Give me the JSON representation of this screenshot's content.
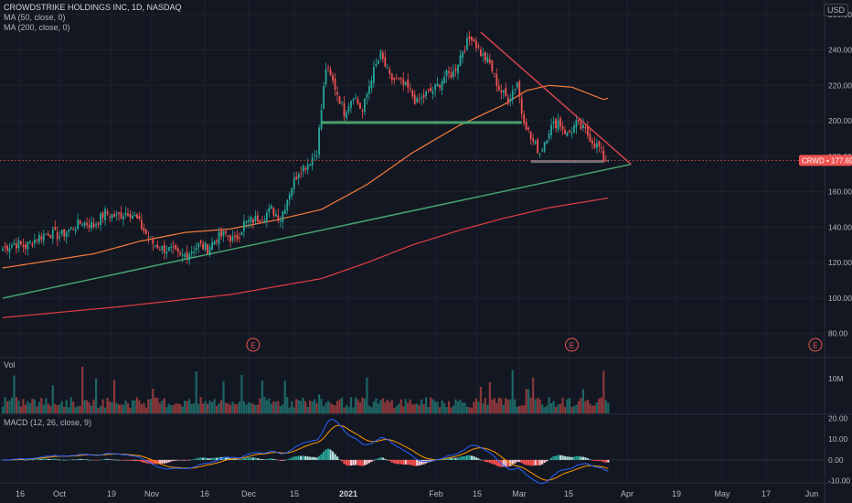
{
  "header": {
    "title": "CROWDSTRIKE HOLDINGS INC, 1D, NASDAQ",
    "ma50_label": "MA (50, close, 0)",
    "ma200_label": "MA (200, close, 0)",
    "currency": "USD"
  },
  "price_tag": {
    "symbol": "CRWD",
    "value": "177.69"
  },
  "vol_panel": {
    "label": "Vol",
    "tick": "10M"
  },
  "macd_panel": {
    "label": "MACD (12, 26, close, 9)"
  },
  "earnings_marker": "E",
  "colors": {
    "background": "#131722",
    "up": "#26a69a",
    "down": "#ef5350",
    "ma50": "#f57c3c",
    "ma200": "#e23e44",
    "support_line": "#4caf78",
    "resistance_line": "#e84752",
    "macd_line": "#2962ff",
    "signal_line": "#ff9800",
    "grid": "#1e222d"
  },
  "chart_data": {
    "type": "candlestick",
    "title": "CROWDSTRIKE HOLDINGS INC, 1D, NASDAQ",
    "x_ticks": [
      "16",
      "Oct",
      "19",
      "Nov",
      "16",
      "Dec",
      "15",
      "2021",
      "Feb",
      "15",
      "Mar",
      "15",
      "Apr",
      "19",
      "May",
      "17",
      "Jun"
    ],
    "major_x_ticks": [
      "2021"
    ],
    "price_axis_ticks": [
      "260.00",
      "240.00",
      "220.00",
      "200.00",
      "180.00",
      "160.00",
      "140.00",
      "120.00",
      "100.00",
      "80.00"
    ],
    "price_range": [
      68,
      264
    ],
    "last_price": 177.69,
    "close_anchors": [
      [
        0,
        128
      ],
      [
        5,
        131
      ],
      [
        10,
        129
      ],
      [
        15,
        134
      ],
      [
        20,
        137
      ],
      [
        25,
        135
      ],
      [
        30,
        139
      ],
      [
        35,
        143
      ],
      [
        40,
        141
      ],
      [
        45,
        148
      ],
      [
        50,
        146
      ],
      [
        55,
        149
      ],
      [
        58,
        146
      ],
      [
        62,
        138
      ],
      [
        66,
        131
      ],
      [
        70,
        128
      ],
      [
        74,
        127
      ],
      [
        78,
        123
      ],
      [
        82,
        126
      ],
      [
        86,
        130
      ],
      [
        90,
        128
      ],
      [
        94,
        134
      ],
      [
        98,
        136
      ],
      [
        102,
        132
      ],
      [
        106,
        142
      ],
      [
        110,
        144
      ],
      [
        114,
        146
      ],
      [
        118,
        150
      ],
      [
        122,
        145
      ],
      [
        126,
        160
      ],
      [
        130,
        172
      ],
      [
        134,
        176
      ],
      [
        138,
        183
      ],
      [
        142,
        230
      ],
      [
        146,
        219
      ],
      [
        150,
        205
      ],
      [
        154,
        215
      ],
      [
        158,
        205
      ],
      [
        162,
        225
      ],
      [
        166,
        237
      ],
      [
        170,
        224
      ],
      [
        174,
        222
      ],
      [
        178,
        218
      ],
      [
        182,
        210
      ],
      [
        186,
        215
      ],
      [
        190,
        218
      ],
      [
        194,
        225
      ],
      [
        198,
        227
      ],
      [
        202,
        240
      ],
      [
        206,
        248
      ],
      [
        210,
        238
      ],
      [
        214,
        232
      ],
      [
        218,
        218
      ],
      [
        222,
        212
      ],
      [
        226,
        222
      ],
      [
        228,
        205
      ],
      [
        232,
        190
      ],
      [
        236,
        182
      ],
      [
        240,
        195
      ],
      [
        244,
        200
      ],
      [
        248,
        192
      ],
      [
        252,
        198
      ],
      [
        256,
        194
      ],
      [
        260,
        187
      ],
      [
        262,
        185
      ],
      [
        264,
        178
      ],
      [
        266,
        177.69
      ]
    ],
    "ma50_anchors": [
      [
        0,
        117
      ],
      [
        20,
        121
      ],
      [
        40,
        125
      ],
      [
        60,
        132
      ],
      [
        80,
        137
      ],
      [
        100,
        139
      ],
      [
        120,
        144
      ],
      [
        140,
        150
      ],
      [
        160,
        164
      ],
      [
        180,
        182
      ],
      [
        200,
        197
      ],
      [
        220,
        209
      ],
      [
        230,
        217
      ],
      [
        240,
        220
      ],
      [
        250,
        219
      ],
      [
        256,
        216
      ],
      [
        264,
        212
      ]
    ],
    "ma200_anchors": [
      [
        0,
        89
      ],
      [
        50,
        95
      ],
      [
        100,
        102
      ],
      [
        140,
        111
      ],
      [
        160,
        120
      ],
      [
        180,
        130
      ],
      [
        200,
        138
      ],
      [
        220,
        145
      ],
      [
        240,
        151
      ],
      [
        264,
        156
      ]
    ],
    "annotation_lines": [
      {
        "name": "rising-support-trendline",
        "from": [
          0,
          100
        ],
        "to": [
          276,
          175.5
        ]
      },
      {
        "name": "falling-resistance-trendline",
        "from": [
          210,
          250
        ],
        "to": [
          276,
          175.5
        ]
      },
      {
        "name": "horizontal-support-level",
        "from": [
          140,
          199
        ],
        "to": [
          228,
          199
        ]
      },
      {
        "name": "horizontal-level-box",
        "from": [
          232,
          177
        ],
        "to": [
          264,
          177
        ]
      }
    ],
    "volume_tick": "10M",
    "macd_axis_ticks": [
      "20.00",
      "10.00",
      "0.00",
      "-10.00"
    ],
    "macd_range": [
      -11,
      21
    ],
    "earnings_events": [
      110,
      250,
      357
    ]
  }
}
